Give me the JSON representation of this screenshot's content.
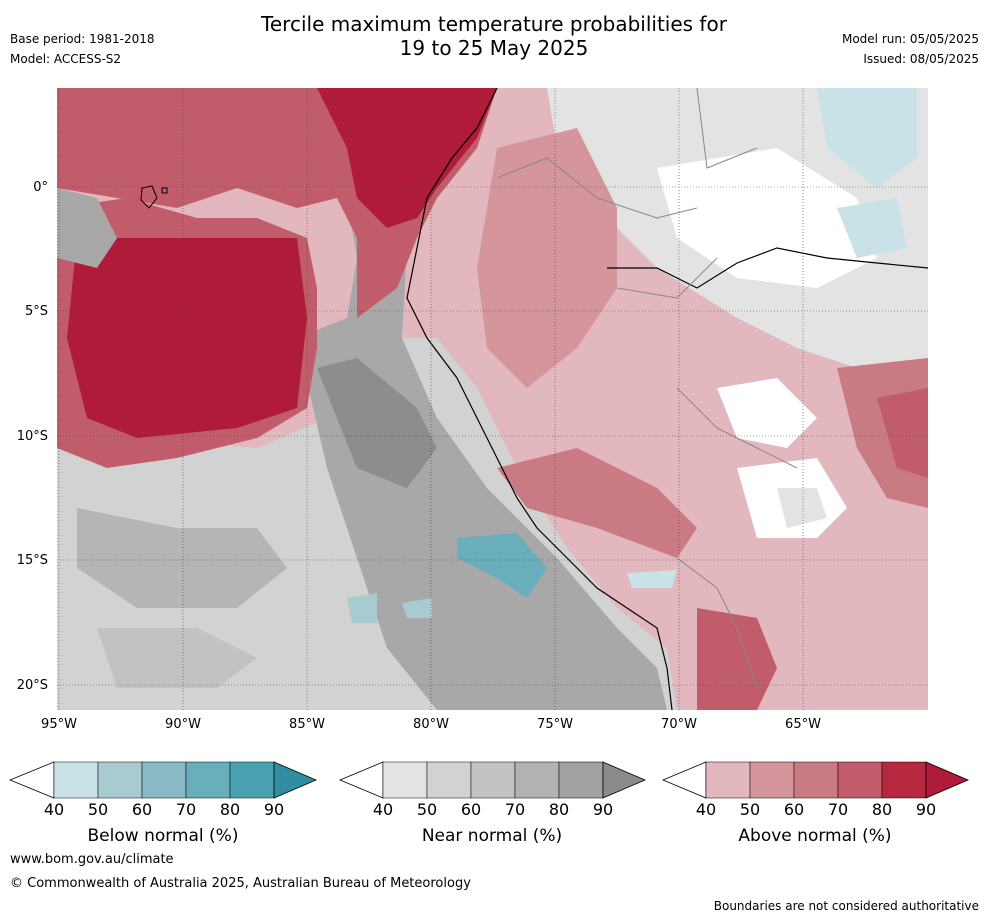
{
  "title_line1": "Tercile maximum temperature probabilities for",
  "title_line2": "19 to 25 May 2025",
  "base_period": "Base period: 1981-2018",
  "model": "Model: ACCESS-S2",
  "model_run": "Model run: 05/05/2025",
  "issued": "Issued: 08/05/2025",
  "latitudes": [
    "0°",
    "5°S",
    "10°S",
    "15°S",
    "20°S"
  ],
  "longitudes": [
    "95°W",
    "90°W",
    "85°W",
    "80°W",
    "75°W",
    "70°W",
    "65°W"
  ],
  "colorbars": [
    {
      "label": "Below normal (%)",
      "ticks": [
        "40",
        "50",
        "60",
        "70",
        "80",
        "90"
      ],
      "colors": [
        "#c9e2e7",
        "#a8cbd1",
        "#88b9c4",
        "#69aebb",
        "#48a1b1"
      ],
      "extend": "#2f8fa1"
    },
    {
      "label": "Near normal (%)",
      "ticks": [
        "40",
        "50",
        "60",
        "70",
        "80",
        "90"
      ],
      "colors": [
        "#e3e3e3",
        "#d2d2d2",
        "#c2c2c2",
        "#b2b2b2",
        "#a1a1a1"
      ],
      "extend": "#8a8a8a"
    },
    {
      "label": "Above normal (%)",
      "ticks": [
        "40",
        "50",
        "60",
        "70",
        "80",
        "90"
      ],
      "colors": [
        "#e2b7bd",
        "#d4959d",
        "#c97a83",
        "#c15d6a",
        "#b5283e"
      ],
      "extend": "#b01b39"
    }
  ],
  "website": "www.bom.gov.au/climate",
  "copyright": "© Commonwealth of Australia 2025, Australian Bureau of Meteorology",
  "disclaimer": "Boundaries are not considered authoritative"
}
